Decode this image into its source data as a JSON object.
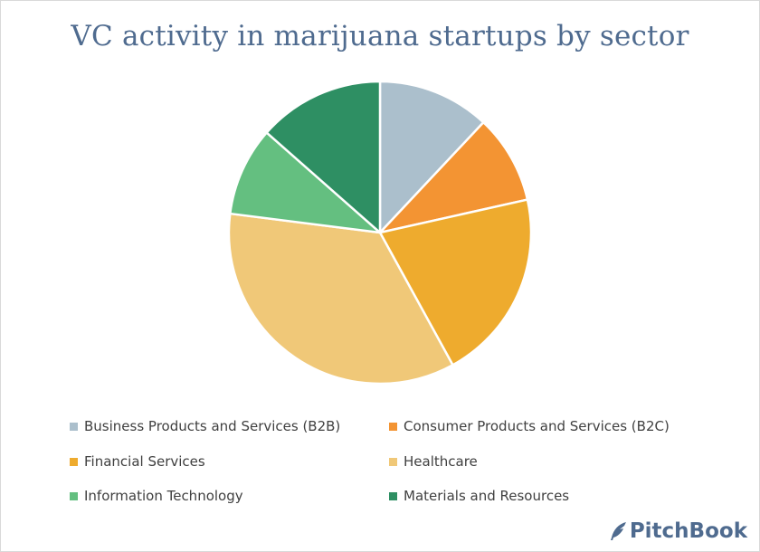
{
  "chart_data": {
    "type": "pie",
    "title": "VC activity in marijuana startups by sector",
    "categories": [
      "Business Products and Services (B2B)",
      "Consumer Products and Services (B2C)",
      "Financial Services",
      "Healthcare",
      "Information Technology",
      "Materials and Resources"
    ],
    "values": [
      12,
      9.5,
      20.5,
      35,
      9.5,
      13.5
    ],
    "colors": [
      "#abbfcc",
      "#f39433",
      "#eeab2e",
      "#f0c878",
      "#64bf80",
      "#2e8f63"
    ],
    "legend_position": "bottom",
    "start_angle": "12 o'clock",
    "direction": "clockwise"
  },
  "brand": {
    "name": "PitchBook",
    "icon": "feather-logo-icon"
  }
}
